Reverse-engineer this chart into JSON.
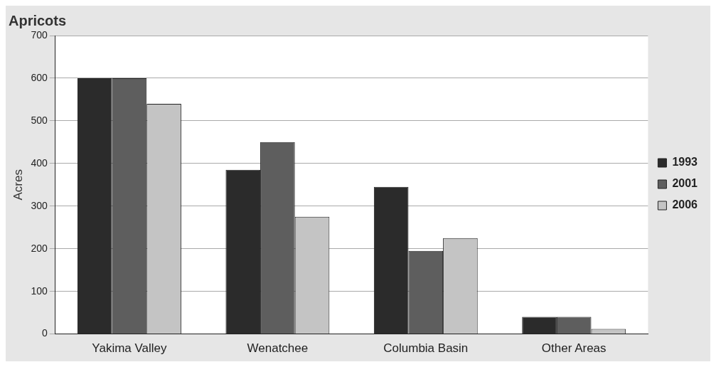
{
  "chart_data": {
    "type": "bar",
    "title": "Apricots",
    "ylabel": "Acres",
    "categories": [
      "Yakima Valley",
      "Wenatchee",
      "Columbia Basin",
      "Other Areas"
    ],
    "series": [
      {
        "name": "1993",
        "color": "#2b2b2b",
        "values": [
          600,
          385,
          345,
          40
        ]
      },
      {
        "name": "2001",
        "color": "#5e5e5e",
        "values": [
          600,
          450,
          195,
          40
        ]
      },
      {
        "name": "2006",
        "color": "#c4c4c4",
        "values": [
          540,
          275,
          225,
          12
        ]
      }
    ],
    "ylim": [
      0,
      700
    ],
    "yticks": [
      0,
      100,
      200,
      300,
      400,
      500,
      600,
      700
    ],
    "grid": "y",
    "legend": "right"
  }
}
